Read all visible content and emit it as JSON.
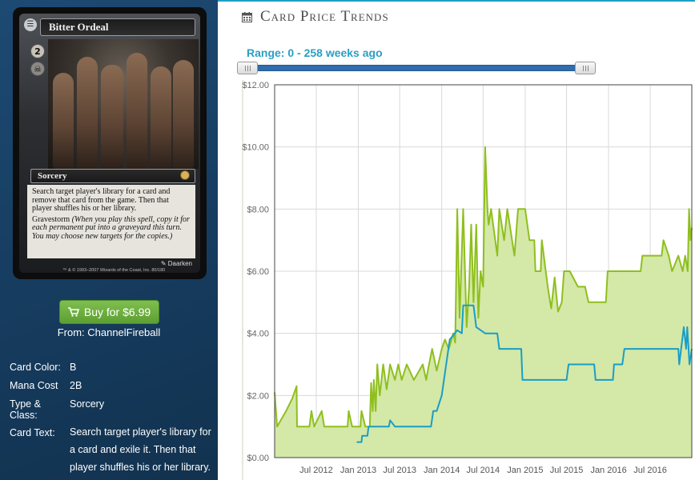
{
  "card": {
    "name": "Bitter Ordeal",
    "mana_generic": "2",
    "type_line": "Sorcery",
    "rules_text": "Search target player's library for a card and remove that card from the game. Then that player shuffles his or her library.",
    "gravestorm_keyword": "Gravestorm",
    "gravestorm_reminder": "(When you play this spell, copy it for each permanent put into a graveyard this turn. You may choose new targets for the copies.)",
    "artist": "Daarken",
    "copyright": "™ & © 1993–2007 Wizards of the Coast, Inc. 80/180"
  },
  "buy": {
    "label": "Buy for $6.99",
    "from": "From: ChannelFireball"
  },
  "details": [
    {
      "label": "Card Color:",
      "value": "B"
    },
    {
      "label": "Mana Cost",
      "value": "2B"
    },
    {
      "label": "Type & Class:",
      "value": "Sorcery"
    },
    {
      "label": "Card Text:",
      "value": "Search target player's library for a card and exile it. Then that player shuffles his or her library. Gravestorm (When you cast this"
    }
  ],
  "panel": {
    "title": "Card Price Trends",
    "range_label": "Range: 0 - 258 weeks ago",
    "range_start_fraction": 0,
    "range_end_fraction": 1
  },
  "colors": {
    "accent": "#1fa0c8",
    "buy_button": "#6aaf3d",
    "sidebar": "#1a4468",
    "series_paper": "#8fbf1e",
    "series_online": "#1a9ec4",
    "paper_fill": "#d4e8a8"
  },
  "chart_data": {
    "type": "line",
    "title": "",
    "xlabel": "",
    "ylabel": "",
    "x_range": [
      "2012-01-01",
      "2016-12-30"
    ],
    "ylim": [
      0,
      12
    ],
    "yticks": [
      0,
      2,
      4,
      6,
      8,
      10,
      12
    ],
    "ytick_labels": [
      "$0.00",
      "$2.00",
      "$4.00",
      "$6.00",
      "$8.00",
      "$10.00",
      "$12.00"
    ],
    "xticks": [
      "2012-07-01",
      "2013-01-01",
      "2013-07-01",
      "2014-01-01",
      "2014-07-01",
      "2015-01-01",
      "2015-07-01",
      "2016-01-01",
      "2016-07-01"
    ],
    "xtick_labels": [
      "Jul 2012",
      "Jan 2013",
      "Jul 2013",
      "Jan 2014",
      "Jul 2014",
      "Jan 2015",
      "Jul 2015",
      "Jan 2016",
      "Jul 2016"
    ],
    "grid": true,
    "series": [
      {
        "points": [
          [
            "2012-01-01",
            2.1
          ],
          [
            "2012-01-12",
            1.0
          ],
          [
            "2012-02-20",
            1.5
          ],
          [
            "2012-03-18",
            1.9
          ],
          [
            "2012-04-06",
            2.3
          ],
          [
            "2012-04-08",
            1.0
          ],
          [
            "2012-06-01",
            1.0
          ],
          [
            "2012-06-10",
            1.5
          ],
          [
            "2012-06-22",
            1.0
          ],
          [
            "2012-07-25",
            1.5
          ],
          [
            "2012-08-05",
            1.0
          ],
          [
            "2012-11-15",
            1.0
          ],
          [
            "2012-11-20",
            1.5
          ],
          [
            "2012-12-05",
            1.0
          ],
          [
            "2013-01-10",
            1.0
          ],
          [
            "2013-01-15",
            1.5
          ],
          [
            "2013-02-01",
            1.0
          ],
          [
            "2013-02-20",
            1.0
          ],
          [
            "2013-02-26",
            2.4
          ],
          [
            "2013-03-05",
            1.5
          ],
          [
            "2013-03-10",
            2.5
          ],
          [
            "2013-03-18",
            1.5
          ],
          [
            "2013-03-25",
            3.0
          ],
          [
            "2013-04-05",
            2.0
          ],
          [
            "2013-04-20",
            3.0
          ],
          [
            "2013-05-05",
            2.2
          ],
          [
            "2013-05-20",
            3.0
          ],
          [
            "2013-06-10",
            2.5
          ],
          [
            "2013-06-25",
            3.0
          ],
          [
            "2013-07-10",
            2.5
          ],
          [
            "2013-08-01",
            3.0
          ],
          [
            "2013-09-01",
            2.5
          ],
          [
            "2013-10-10",
            3.0
          ],
          [
            "2013-10-25",
            2.5
          ],
          [
            "2013-11-01",
            2.8
          ],
          [
            "2013-11-20",
            3.5
          ],
          [
            "2013-12-10",
            2.8
          ],
          [
            "2014-01-01",
            3.5
          ],
          [
            "2014-01-15",
            3.8
          ],
          [
            "2014-02-01",
            3.5
          ],
          [
            "2014-02-20",
            4.0
          ],
          [
            "2014-03-01",
            3.7
          ],
          [
            "2014-03-10",
            8.0
          ],
          [
            "2014-03-20",
            4.5
          ],
          [
            "2014-04-05",
            8.0
          ],
          [
            "2014-04-20",
            4.2
          ],
          [
            "2014-05-01",
            5.5
          ],
          [
            "2014-05-10",
            7.5
          ],
          [
            "2014-05-20",
            5.0
          ],
          [
            "2014-06-01",
            7.5
          ],
          [
            "2014-06-10",
            4.5
          ],
          [
            "2014-06-20",
            6.0
          ],
          [
            "2014-07-01",
            5.5
          ],
          [
            "2014-07-10",
            10.0
          ],
          [
            "2014-07-20",
            8.0
          ],
          [
            "2014-07-25",
            7.5
          ],
          [
            "2014-08-05",
            8.0
          ],
          [
            "2014-09-01",
            6.5
          ],
          [
            "2014-09-10",
            8.0
          ],
          [
            "2014-10-01",
            7.0
          ],
          [
            "2014-10-15",
            8.0
          ],
          [
            "2014-11-15",
            6.5
          ],
          [
            "2014-12-01",
            8.0
          ],
          [
            "2015-01-01",
            8.0
          ],
          [
            "2015-01-20",
            7.0
          ],
          [
            "2015-02-10",
            7.0
          ],
          [
            "2015-02-15",
            6.0
          ],
          [
            "2015-03-10",
            6.0
          ],
          [
            "2015-03-15",
            7.0
          ],
          [
            "2015-04-01",
            6.0
          ],
          [
            "2015-04-10",
            5.5
          ],
          [
            "2015-04-25",
            4.8
          ],
          [
            "2015-05-10",
            5.8
          ],
          [
            "2015-05-25",
            4.7
          ],
          [
            "2015-06-10",
            5.0
          ],
          [
            "2015-06-20",
            6.0
          ],
          [
            "2015-07-15",
            6.0
          ],
          [
            "2015-08-20",
            5.5
          ],
          [
            "2015-09-20",
            5.5
          ],
          [
            "2015-10-05",
            5.0
          ],
          [
            "2015-12-20",
            5.0
          ],
          [
            "2015-12-28",
            6.0
          ],
          [
            "2016-03-20",
            6.0
          ],
          [
            "2016-03-28",
            6.0
          ],
          [
            "2016-05-20",
            6.0
          ],
          [
            "2016-05-28",
            6.5
          ],
          [
            "2016-08-20",
            6.5
          ],
          [
            "2016-08-28",
            7.0
          ],
          [
            "2016-09-20",
            6.5
          ],
          [
            "2016-10-05",
            6.0
          ],
          [
            "2016-11-01",
            6.5
          ],
          [
            "2016-11-20",
            6.0
          ],
          [
            "2016-12-01",
            6.5
          ],
          [
            "2016-12-12",
            6.0
          ],
          [
            "2016-12-18",
            8.0
          ],
          [
            "2016-12-24",
            7.0
          ],
          [
            "2016-12-30",
            7.4
          ]
        ]
      },
      {
        "points": [
          [
            "2012-12-25",
            0.5
          ],
          [
            "2013-01-15",
            0.5
          ],
          [
            "2013-01-18",
            0.7
          ],
          [
            "2013-02-10",
            0.7
          ],
          [
            "2013-02-15",
            1.0
          ],
          [
            "2013-05-15",
            1.0
          ],
          [
            "2013-05-20",
            1.2
          ],
          [
            "2013-06-10",
            1.0
          ],
          [
            "2013-10-01",
            1.0
          ],
          [
            "2013-11-15",
            1.0
          ],
          [
            "2013-11-25",
            1.5
          ],
          [
            "2013-12-10",
            1.5
          ],
          [
            "2014-01-01",
            2.0
          ],
          [
            "2014-02-05",
            3.8
          ],
          [
            "2014-03-10",
            4.1
          ],
          [
            "2014-03-30",
            4.0
          ],
          [
            "2014-04-05",
            4.9
          ],
          [
            "2014-05-20",
            4.9
          ],
          [
            "2014-06-01",
            4.2
          ],
          [
            "2014-07-10",
            4.0
          ],
          [
            "2014-09-01",
            4.0
          ],
          [
            "2014-09-10",
            3.5
          ],
          [
            "2014-12-15",
            3.5
          ],
          [
            "2014-12-20",
            2.5
          ],
          [
            "2015-07-01",
            2.5
          ],
          [
            "2015-07-10",
            3.0
          ],
          [
            "2015-10-30",
            3.0
          ],
          [
            "2015-11-05",
            2.5
          ],
          [
            "2016-01-20",
            2.5
          ],
          [
            "2016-01-25",
            3.0
          ],
          [
            "2016-03-01",
            3.0
          ],
          [
            "2016-03-10",
            3.5
          ],
          [
            "2016-11-01",
            3.5
          ],
          [
            "2016-11-05",
            3.0
          ],
          [
            "2016-11-25",
            4.2
          ],
          [
            "2016-12-05",
            3.5
          ],
          [
            "2016-12-10",
            4.2
          ],
          [
            "2016-12-20",
            3.0
          ],
          [
            "2016-12-30",
            3.5
          ]
        ]
      }
    ]
  }
}
